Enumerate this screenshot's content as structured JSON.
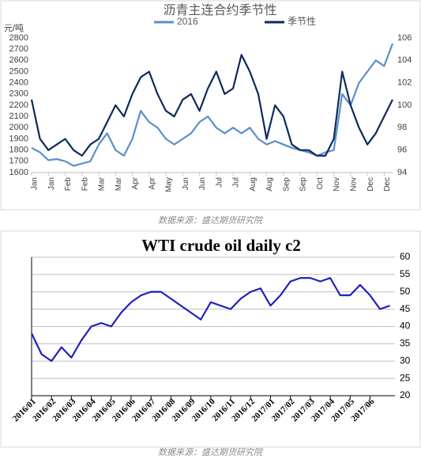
{
  "chart_data": [
    {
      "type": "line",
      "title": "沥青主连合约季节性",
      "ylabel": "元/吨",
      "source": "数据来源：盛达期货研究院",
      "grid": false,
      "x": [
        0,
        1,
        2,
        3,
        4,
        5,
        6,
        7,
        8,
        9,
        10,
        11,
        12,
        13,
        14,
        15,
        16,
        17,
        18,
        19,
        20,
        21,
        22,
        23,
        24,
        25,
        26,
        27,
        28,
        29,
        30,
        31,
        32,
        33,
        34,
        35,
        36,
        37,
        38,
        39,
        40,
        41,
        42,
        43
      ],
      "xlim": [
        0,
        43
      ],
      "xticks": [
        {
          "value": 0,
          "label": "Jan"
        },
        {
          "value": 2,
          "label": "Jan"
        },
        {
          "value": 4,
          "label": "Feb"
        },
        {
          "value": 6,
          "label": "Feb"
        },
        {
          "value": 8,
          "label": "Mar"
        },
        {
          "value": 10,
          "label": "Mar"
        },
        {
          "value": 12,
          "label": "Apr"
        },
        {
          "value": 14,
          "label": "Apr"
        },
        {
          "value": 16,
          "label": "May"
        },
        {
          "value": 18,
          "label": "Jun"
        },
        {
          "value": 20,
          "label": "Jun"
        },
        {
          "value": 22,
          "label": "Jul"
        },
        {
          "value": 24,
          "label": "Jul"
        },
        {
          "value": 26,
          "label": "Aug"
        },
        {
          "value": 28,
          "label": "Aug"
        },
        {
          "value": 30,
          "label": "Sep"
        },
        {
          "value": 32,
          "label": "Sep"
        },
        {
          "value": 34,
          "label": "Oct"
        },
        {
          "value": 36,
          "label": "Nov"
        },
        {
          "value": 38,
          "label": "Nov"
        },
        {
          "value": 40,
          "label": "Dec"
        },
        {
          "value": 42,
          "label": "Dec"
        }
      ],
      "ylim": [
        1600,
        2800
      ],
      "yticks": [
        1600,
        1700,
        1800,
        1900,
        2000,
        2100,
        2200,
        2300,
        2400,
        2500,
        2600,
        2700,
        2800
      ],
      "y2lim": [
        94,
        106
      ],
      "y2ticks": [
        94,
        96,
        98,
        100,
        102,
        104,
        106
      ],
      "series": [
        {
          "name": "2016",
          "color": "#5b8fc9",
          "axis": "y",
          "values": [
            1820,
            1780,
            1710,
            1720,
            1700,
            1660,
            1680,
            1700,
            1850,
            1950,
            1800,
            1750,
            1900,
            2150,
            2050,
            2000,
            1900,
            1850,
            1900,
            1950,
            2050,
            2100,
            2000,
            1950,
            2000,
            1950,
            2000,
            1900,
            1850,
            1880,
            1850,
            1820,
            1800,
            1780,
            1750,
            1780,
            1800,
            2300,
            2200,
            2400,
            2500,
            2600,
            2550,
            2750
          ]
        },
        {
          "name": "季节性",
          "color": "#0d2a5c",
          "axis": "y2",
          "values": [
            100.5,
            97,
            96,
            96.5,
            97,
            96,
            95.5,
            96.5,
            97,
            98.5,
            100,
            99,
            101,
            102.5,
            103,
            101,
            99.5,
            99,
            100.5,
            101,
            99.5,
            101.5,
            103,
            101,
            101.5,
            104.5,
            103,
            101,
            97,
            100,
            99,
            96.5,
            96,
            96,
            95.5,
            95.5,
            97,
            103,
            100,
            98,
            96.5,
            97.5,
            99,
            100.5
          ]
        }
      ]
    },
    {
      "type": "line",
      "title": "WTI crude oil daily c2",
      "source": "数据来源：盛达期货研究院",
      "grid": true,
      "x": [
        0,
        1,
        2,
        3,
        4,
        5,
        6,
        7,
        8,
        9,
        10,
        11,
        12,
        13,
        14,
        15,
        16,
        17,
        18,
        19,
        20,
        21,
        22,
        23,
        24,
        25,
        26,
        27,
        28,
        29,
        30,
        31,
        32,
        33,
        34,
        35,
        36
      ],
      "xlim": [
        0,
        36.5
      ],
      "xticks": [
        {
          "value": 0,
          "label": "2016/01"
        },
        {
          "value": 2,
          "label": "2016/02"
        },
        {
          "value": 4,
          "label": "2016/03"
        },
        {
          "value": 6,
          "label": "2016/04"
        },
        {
          "value": 8,
          "label": "2016/05"
        },
        {
          "value": 10,
          "label": "2016/06"
        },
        {
          "value": 12,
          "label": "2016/07"
        },
        {
          "value": 14,
          "label": "2016/08"
        },
        {
          "value": 16,
          "label": "2016/09"
        },
        {
          "value": 18,
          "label": "2016/10"
        },
        {
          "value": 20,
          "label": "2016/11"
        },
        {
          "value": 22,
          "label": "2016/12"
        },
        {
          "value": 24,
          "label": "2017/01"
        },
        {
          "value": 26,
          "label": "2017/02"
        },
        {
          "value": 28,
          "label": "2017/03"
        },
        {
          "value": 30,
          "label": "2017/04"
        },
        {
          "value": 32,
          "label": "2017/05"
        },
        {
          "value": 34,
          "label": "2017/06"
        }
      ],
      "y2lim": [
        20,
        60
      ],
      "y2ticks": [
        20,
        25,
        30,
        35,
        40,
        45,
        50,
        55,
        60
      ],
      "series": [
        {
          "name": "WTI",
          "color": "#1f1fbf",
          "axis": "y2",
          "values": [
            38,
            32,
            30,
            34,
            31,
            36,
            40,
            41,
            40,
            44,
            47,
            49,
            50,
            50,
            48,
            46,
            44,
            42,
            47,
            46,
            45,
            48,
            50,
            51,
            46,
            49,
            53,
            54,
            54,
            53,
            54,
            49,
            49,
            52,
            49,
            45,
            46
          ]
        }
      ]
    }
  ]
}
